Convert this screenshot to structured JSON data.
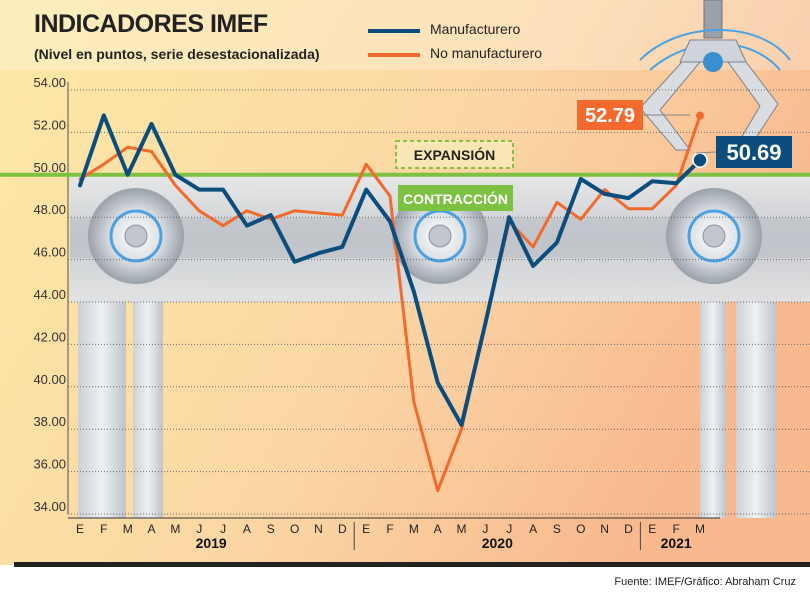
{
  "header": {
    "title": "INDICADORES IMEF",
    "subtitle": "(Nivel en puntos, serie desestacionalizada)"
  },
  "legend": {
    "manufacturing": "Manufacturero",
    "non_manufacturing": "No manufacturero"
  },
  "annotations": {
    "expansion": "EXPANSIÓN",
    "contraction": "CONTRACCIÓN",
    "non_manufacturing_last": "52.79",
    "manufacturing_last": "50.69"
  },
  "source": "Fuente: IMEF/Gráfico: Abraham Cruz",
  "colors": {
    "manufacturing": "#0b4d7d",
    "non_manufacturing": "#f26a2e",
    "threshold": "#7cc142",
    "expansion_box": "#8cbf3f"
  },
  "chart_data": {
    "type": "line",
    "title": "INDICADORES IMEF",
    "subtitle": "(Nivel en puntos, serie desestacionalizada)",
    "x": [
      "E",
      "F",
      "M",
      "A",
      "M",
      "J",
      "J",
      "A",
      "S",
      "O",
      "N",
      "D",
      "E",
      "F",
      "M",
      "A",
      "M",
      "J",
      "J",
      "A",
      "S",
      "O",
      "N",
      "D",
      "E",
      "F",
      "M"
    ],
    "years": [
      {
        "label": "2019",
        "months": 12
      },
      {
        "label": "2020",
        "months": 12
      },
      {
        "label": "2021",
        "months": 3
      }
    ],
    "series": [
      {
        "name": "Manufacturero",
        "values": [
          49.5,
          52.8,
          50.0,
          52.4,
          50.0,
          49.3,
          49.3,
          47.6,
          48.1,
          45.9,
          46.3,
          46.6,
          49.3,
          47.8,
          44.5,
          40.2,
          38.2,
          43.0,
          48.0,
          45.7,
          46.8,
          49.8,
          49.1,
          48.9,
          49.7,
          49.6,
          50.69
        ]
      },
      {
        "name": "No manufacturero",
        "values": [
          49.8,
          50.5,
          51.3,
          51.1,
          49.5,
          48.3,
          47.6,
          48.3,
          47.9,
          48.3,
          48.2,
          48.1,
          50.5,
          49.0,
          39.3,
          35.1,
          38.0,
          43.0,
          47.8,
          46.6,
          48.7,
          47.9,
          49.3,
          48.4,
          48.4,
          49.5,
          52.79
        ]
      }
    ],
    "ylim": [
      34,
      54
    ],
    "yticks": [
      "34.00",
      "36.00",
      "38.00",
      "40.00",
      "42.00",
      "44.00",
      "46.00",
      "48.00",
      "50.00",
      "52.00",
      "54.00"
    ],
    "threshold": 50,
    "grid": true
  }
}
